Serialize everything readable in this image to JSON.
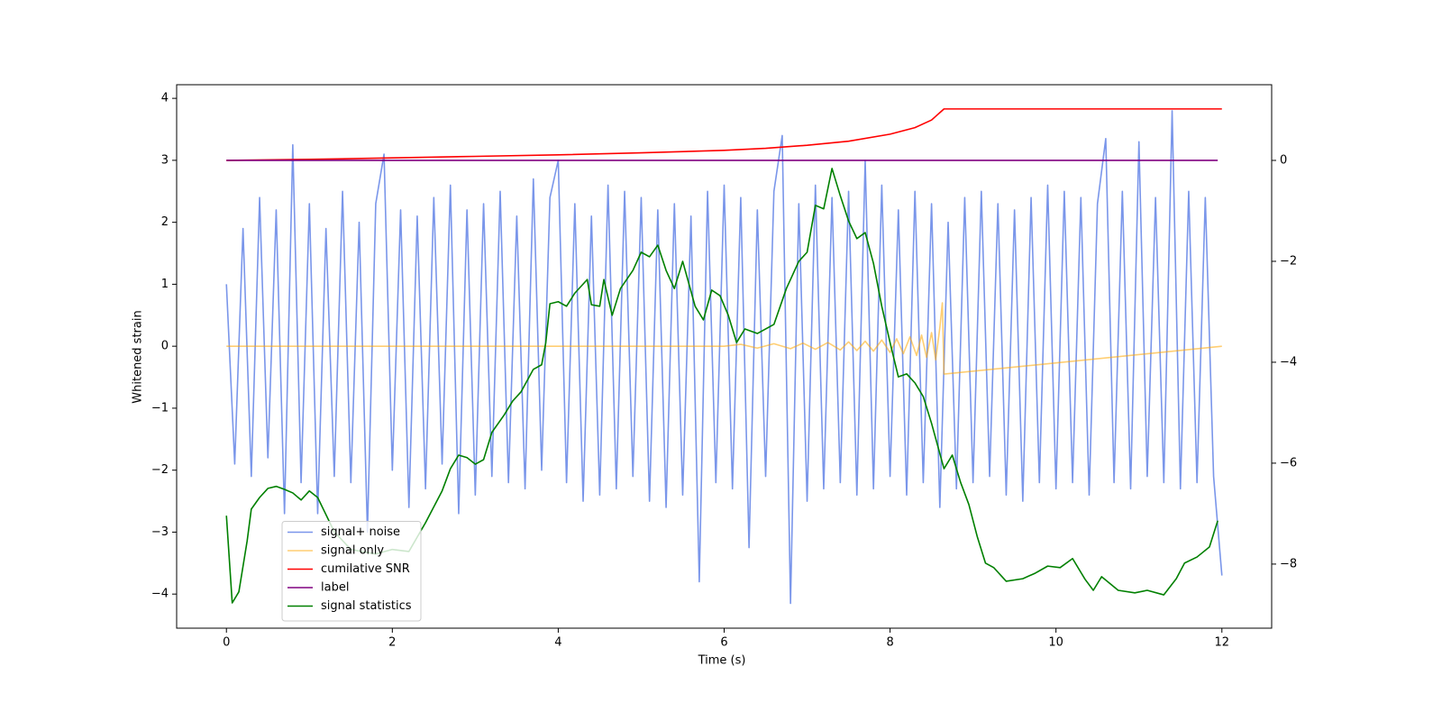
{
  "chart_data": {
    "type": "line",
    "xlabel": "Time (s)",
    "ylabel": "Whitened strain",
    "xlim": [
      -0.6,
      12.6
    ],
    "xticks": [
      0,
      2,
      4,
      6,
      8,
      10,
      12
    ],
    "ylim": [
      -4.55,
      4.22
    ],
    "yticks": [
      {
        "value": -4,
        "label": "−4"
      },
      {
        "value": -3,
        "label": "−3"
      },
      {
        "value": -2,
        "label": "−2"
      },
      {
        "value": -1,
        "label": "−1"
      },
      0,
      1,
      2,
      3,
      4
    ],
    "y2lim": [
      -9.27,
      1.5
    ],
    "y2ticks": [
      {
        "value": -8,
        "label": "−8"
      },
      {
        "value": -6,
        "label": "−6"
      },
      {
        "value": -4,
        "label": "−4"
      },
      {
        "value": -2,
        "label": "−2"
      },
      0
    ],
    "legend": "lower left",
    "series": [
      {
        "name": "signal+ noise",
        "color": "#4169e1",
        "opacity": 0.7,
        "x": [
          0,
          0.1,
          0.2,
          0.3,
          0.4,
          0.5,
          0.6,
          0.7,
          0.8,
          0.9,
          1,
          1.1,
          1.2,
          1.3,
          1.4,
          1.5,
          1.6,
          1.7,
          1.8,
          1.9,
          2,
          2.1,
          2.2,
          2.3,
          2.4,
          2.5,
          2.6,
          2.7,
          2.8,
          2.9,
          3,
          3.1,
          3.2,
          3.3,
          3.4,
          3.5,
          3.6,
          3.7,
          3.8,
          3.9,
          4,
          4.1,
          4.2,
          4.3,
          4.4,
          4.5,
          4.6,
          4.7,
          4.8,
          4.9,
          5,
          5.1,
          5.2,
          5.3,
          5.4,
          5.5,
          5.6,
          5.7,
          5.8,
          5.9,
          6,
          6.1,
          6.2,
          6.3,
          6.4,
          6.5,
          6.6,
          6.7,
          6.8,
          6.9,
          7,
          7.1,
          7.2,
          7.3,
          7.4,
          7.5,
          7.6,
          7.7,
          7.8,
          7.9,
          8,
          8.1,
          8.2,
          8.3,
          8.4,
          8.5,
          8.6,
          8.7,
          8.8,
          8.9,
          9,
          9.1,
          9.2,
          9.3,
          9.4,
          9.5,
          9.6,
          9.7,
          9.8,
          9.9,
          10,
          10.1,
          10.2,
          10.3,
          10.4,
          10.5,
          10.6,
          10.7,
          10.8,
          10.9,
          11,
          11.1,
          11.2,
          11.3,
          11.4,
          11.5,
          11.6,
          11.7,
          11.8,
          11.9,
          12
        ],
        "values": [
          1.0,
          -1.9,
          1.9,
          -2.1,
          2.4,
          -1.8,
          2.2,
          -2.7,
          3.25,
          -2.2,
          2.3,
          -2.7,
          1.9,
          -2.1,
          2.5,
          -2.2,
          2.0,
          -3.0,
          2.3,
          3.1,
          -2.0,
          2.2,
          -2.6,
          2.1,
          -2.3,
          2.4,
          -1.9,
          2.6,
          -2.7,
          2.2,
          -2.4,
          2.3,
          -2.1,
          2.5,
          -2.2,
          2.1,
          -2.3,
          2.7,
          -2.0,
          2.4,
          3.0,
          -2.2,
          2.3,
          -2.5,
          2.1,
          -2.4,
          2.6,
          -2.3,
          2.5,
          -2.1,
          2.4,
          -2.5,
          2.2,
          -2.6,
          2.3,
          -2.4,
          2.1,
          -3.8,
          2.5,
          -2.2,
          2.6,
          -2.3,
          2.4,
          -3.25,
          2.2,
          -2.1,
          2.5,
          3.4,
          -4.15,
          2.3,
          -2.5,
          2.6,
          -2.3,
          2.4,
          -2.2,
          2.5,
          -2.4,
          3.0,
          -2.3,
          2.6,
          -2.1,
          2.2,
          -2.4,
          2.5,
          -2.2,
          2.3,
          -2.6,
          2.0,
          -2.3,
          2.4,
          -2.2,
          2.5,
          -2.1,
          2.3,
          -2.4,
          2.2,
          -2.5,
          2.4,
          -2.2,
          2.6,
          -2.3,
          2.5,
          -2.2,
          2.4,
          -2.4,
          2.3,
          3.35,
          -2.2,
          2.5,
          -2.3,
          3.3,
          -2.1,
          2.4,
          -2.2,
          3.8,
          -2.3,
          2.5,
          -2.2,
          2.4,
          -2.1,
          -3.7
        ]
      },
      {
        "name": "signal only",
        "color": "#ffa500",
        "opacity": 0.55,
        "x": [
          0,
          6,
          6.2,
          6.4,
          6.6,
          6.8,
          6.95,
          7.1,
          7.25,
          7.4,
          7.5,
          7.6,
          7.7,
          7.8,
          7.9,
          8,
          8.08,
          8.16,
          8.24,
          8.32,
          8.38,
          8.44,
          8.5,
          8.55,
          8.6,
          8.63,
          8.65,
          12
        ],
        "values": [
          0,
          0,
          0.03,
          -0.03,
          0.04,
          -0.04,
          0.05,
          -0.05,
          0.06,
          -0.06,
          0.07,
          -0.07,
          0.08,
          -0.08,
          0.1,
          -0.1,
          0.12,
          -0.12,
          0.15,
          -0.15,
          0.18,
          -0.18,
          0.22,
          -0.22,
          0.3,
          0.7,
          -0.45,
          0
        ]
      },
      {
        "name": "cumilative SNR",
        "color": "#ff0000",
        "opacity": 1,
        "axis": "y2",
        "x": [
          0,
          1,
          2,
          3,
          4,
          5,
          6,
          6.5,
          7,
          7.5,
          8,
          8.3,
          8.5,
          8.65,
          12
        ],
        "values": [
          0,
          0.02,
          0.05,
          0.08,
          0.11,
          0.15,
          0.2,
          0.24,
          0.3,
          0.38,
          0.52,
          0.65,
          0.8,
          1.02,
          1.02
        ]
      },
      {
        "name": "label",
        "color": "#800080",
        "opacity": 1,
        "axis": "y2",
        "x": [
          0,
          11.95
        ],
        "values": [
          0,
          0
        ]
      },
      {
        "name": "signal statistics",
        "color": "#008000",
        "opacity": 1,
        "axis": "y2",
        "x": [
          0,
          0.07,
          0.15,
          0.25,
          0.3,
          0.4,
          0.5,
          0.6,
          0.7,
          0.8,
          0.9,
          1,
          1.1,
          1.3,
          1.5,
          1.8,
          2,
          2.2,
          2.4,
          2.6,
          2.7,
          2.8,
          2.9,
          3,
          3.1,
          3.2,
          3.35,
          3.45,
          3.55,
          3.7,
          3.8,
          3.85,
          3.9,
          4,
          4.1,
          4.2,
          4.35,
          4.4,
          4.5,
          4.55,
          4.65,
          4.75,
          4.9,
          5,
          5.1,
          5.2,
          5.3,
          5.4,
          5.5,
          5.65,
          5.75,
          5.85,
          5.95,
          6.05,
          6.15,
          6.25,
          6.4,
          6.6,
          6.75,
          6.9,
          7,
          7.1,
          7.2,
          7.3,
          7.4,
          7.5,
          7.6,
          7.7,
          7.8,
          7.9,
          8,
          8.1,
          8.2,
          8.3,
          8.4,
          8.5,
          8.65,
          8.75,
          8.85,
          8.95,
          9.05,
          9.15,
          9.25,
          9.4,
          9.6,
          9.75,
          9.9,
          10.05,
          10.2,
          10.35,
          10.45,
          10.55,
          10.75,
          10.95,
          11.1,
          11.3,
          11.45,
          11.55,
          11.7,
          11.85,
          11.95
        ],
        "values": [
          -7.04,
          -8.77,
          -8.55,
          -7.54,
          -6.91,
          -6.68,
          -6.5,
          -6.46,
          -6.52,
          -6.59,
          -6.73,
          -6.55,
          -6.68,
          -7.36,
          -7.71,
          -7.8,
          -7.71,
          -7.75,
          -7.18,
          -6.55,
          -6.11,
          -5.84,
          -5.89,
          -6.02,
          -5.93,
          -5.39,
          -5.04,
          -4.77,
          -4.59,
          -4.14,
          -4.05,
          -3.61,
          -2.84,
          -2.8,
          -2.89,
          -2.63,
          -2.36,
          -2.86,
          -2.89,
          -2.36,
          -3.07,
          -2.54,
          -2.18,
          -1.82,
          -1.91,
          -1.68,
          -2.18,
          -2.54,
          -2.0,
          -2.89,
          -3.16,
          -2.57,
          -2.68,
          -3.07,
          -3.61,
          -3.34,
          -3.43,
          -3.25,
          -2.54,
          -2.0,
          -1.82,
          -0.89,
          -0.96,
          -0.16,
          -0.7,
          -1.2,
          -1.55,
          -1.43,
          -2.04,
          -2.89,
          -3.61,
          -4.29,
          -4.23,
          -4.41,
          -4.68,
          -5.21,
          -6.11,
          -5.84,
          -6.38,
          -6.82,
          -7.45,
          -7.98,
          -8.07,
          -8.34,
          -8.29,
          -8.18,
          -8.04,
          -8.07,
          -7.89,
          -8.3,
          -8.52,
          -8.25,
          -8.52,
          -8.57,
          -8.52,
          -8.61,
          -8.29,
          -7.98,
          -7.86,
          -7.66,
          -7.14
        ]
      }
    ]
  }
}
